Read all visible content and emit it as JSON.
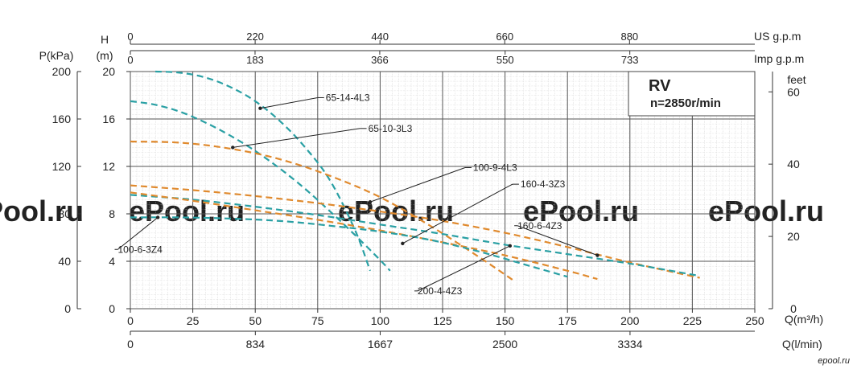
{
  "chart_data": {
    "type": "line",
    "box_title": "RV",
    "box_subtitle": "n=2850r/min",
    "xlabel": "Q(m³/h)",
    "xlim": [
      0,
      250
    ],
    "x_ticks": [
      "0",
      "25",
      "50",
      "75",
      "100",
      "125",
      "150",
      "175",
      "200",
      "225",
      "250"
    ],
    "xlabel_lmin": "Q(l/min)",
    "x_lmin_ticks": [
      "0",
      "834",
      "1667",
      "2500",
      "3334"
    ],
    "top_us_label": "US g.p.m",
    "top_us_ticks": [
      "0",
      "220",
      "440",
      "660",
      "880"
    ],
    "top_imp_label": "Imp g.p.m",
    "top_imp_ticks": [
      "0",
      "183",
      "366",
      "550",
      "733"
    ],
    "ylabel_h": "H",
    "ylabel_h_unit": "(m)",
    "ylim": [
      0,
      20
    ],
    "y_h_ticks": [
      "0",
      "4",
      "8",
      "12",
      "16",
      "20"
    ],
    "ylabel_kpa": "P(kPa)",
    "y_kpa_ticks": [
      "0",
      "40",
      "80",
      "120",
      "160",
      "200"
    ],
    "ylabel_feet": "feet",
    "y_feet_ticks": [
      "0",
      "20",
      "40",
      "60"
    ],
    "watermark": "ePool.ru",
    "logo": "epool.ru",
    "grid": true,
    "series": [
      {
        "name": "65-14-4L3",
        "color": "#2aa0a4",
        "x": [
          10,
          20,
          30,
          40,
          50,
          60,
          70,
          80,
          90,
          96
        ],
        "y": [
          20,
          19.9,
          19.5,
          18.7,
          17.5,
          15.8,
          13.6,
          10.8,
          6.6,
          3.2
        ]
      },
      {
        "name": "65-10-3L3",
        "color": "#2aa0a4",
        "x": [
          0,
          10,
          20,
          30,
          40,
          50,
          60,
          70,
          80,
          90,
          100,
          104
        ],
        "y": [
          17.5,
          17.2,
          16.6,
          15.7,
          14.6,
          13.3,
          11.8,
          10.1,
          8.2,
          6.2,
          4.1,
          3.2
        ]
      },
      {
        "name": "100-9-4L3",
        "color": "#e08a2e",
        "x": [
          0,
          20,
          40,
          60,
          80,
          100,
          120,
          140,
          154
        ],
        "y": [
          14.1,
          14.0,
          13.5,
          12.6,
          11.2,
          9.4,
          7.0,
          4.3,
          2.3
        ]
      },
      {
        "name": "160-4-3Z3",
        "color": "#e08a2e",
        "x": [
          0,
          25,
          50,
          75,
          100,
          125,
          150,
          175,
          200,
          228
        ],
        "y": [
          10.4,
          10.0,
          9.5,
          8.9,
          8.2,
          7.4,
          6.4,
          5.2,
          3.9,
          2.6
        ]
      },
      {
        "name": "160-6-4Z3",
        "color": "#2aa0a4",
        "x": [
          0,
          25,
          50,
          75,
          100,
          125,
          150,
          175,
          200,
          227
        ],
        "y": [
          9.6,
          9.2,
          8.6,
          7.9,
          7.1,
          6.3,
          5.4,
          4.6,
          3.8,
          2.8
        ]
      },
      {
        "name": "200-4-4Z3",
        "color": "#e08a2e",
        "x": [
          0,
          25,
          50,
          75,
          100,
          125,
          150,
          175,
          187
        ],
        "y": [
          9.8,
          9.1,
          8.3,
          7.5,
          6.6,
          5.6,
          4.5,
          3.2,
          2.5
        ]
      },
      {
        "name": "100-6-3Z4",
        "color": "#2aa0a4",
        "x": [
          0,
          20,
          40,
          60,
          80,
          100,
          120,
          140,
          160,
          175
        ],
        "y": [
          7.7,
          7.7,
          7.6,
          7.4,
          7.0,
          6.5,
          5.8,
          4.8,
          3.6,
          2.7
        ]
      }
    ],
    "annotations": [
      {
        "series": "65-14-4L3",
        "text": "65-14-4L3",
        "px": [
          52,
          16.9
        ],
        "lx": [
          75,
          17.8
        ]
      },
      {
        "series": "65-10-3L3",
        "text": "65-10-3L3",
        "px": [
          41,
          13.6
        ],
        "lx": [
          92,
          15.2
        ]
      },
      {
        "series": "100-9-4L3",
        "text": "100-9-4L3",
        "px": [
          96,
          9.0
        ],
        "lx": [
          134,
          11.9
        ]
      },
      {
        "series": "160-4-3Z3",
        "text": "160-4-3Z3",
        "px": [
          109,
          5.5
        ],
        "lx": [
          153,
          10.5
        ]
      },
      {
        "series": "160-6-4Z3",
        "text": "160-6-4Z3",
        "px": [
          187,
          4.5
        ],
        "lx": [
          155,
          7.0
        ]
      },
      {
        "series": "200-4-4Z3",
        "text": "200-4-4Z3",
        "px": [
          152,
          5.3
        ],
        "lx": [
          115,
          1.5
        ]
      },
      {
        "series": "100-6-3Z4",
        "text": "100-6-3Z4",
        "px": [
          11,
          7.7
        ],
        "lx": [
          -5,
          5.0
        ]
      }
    ]
  }
}
